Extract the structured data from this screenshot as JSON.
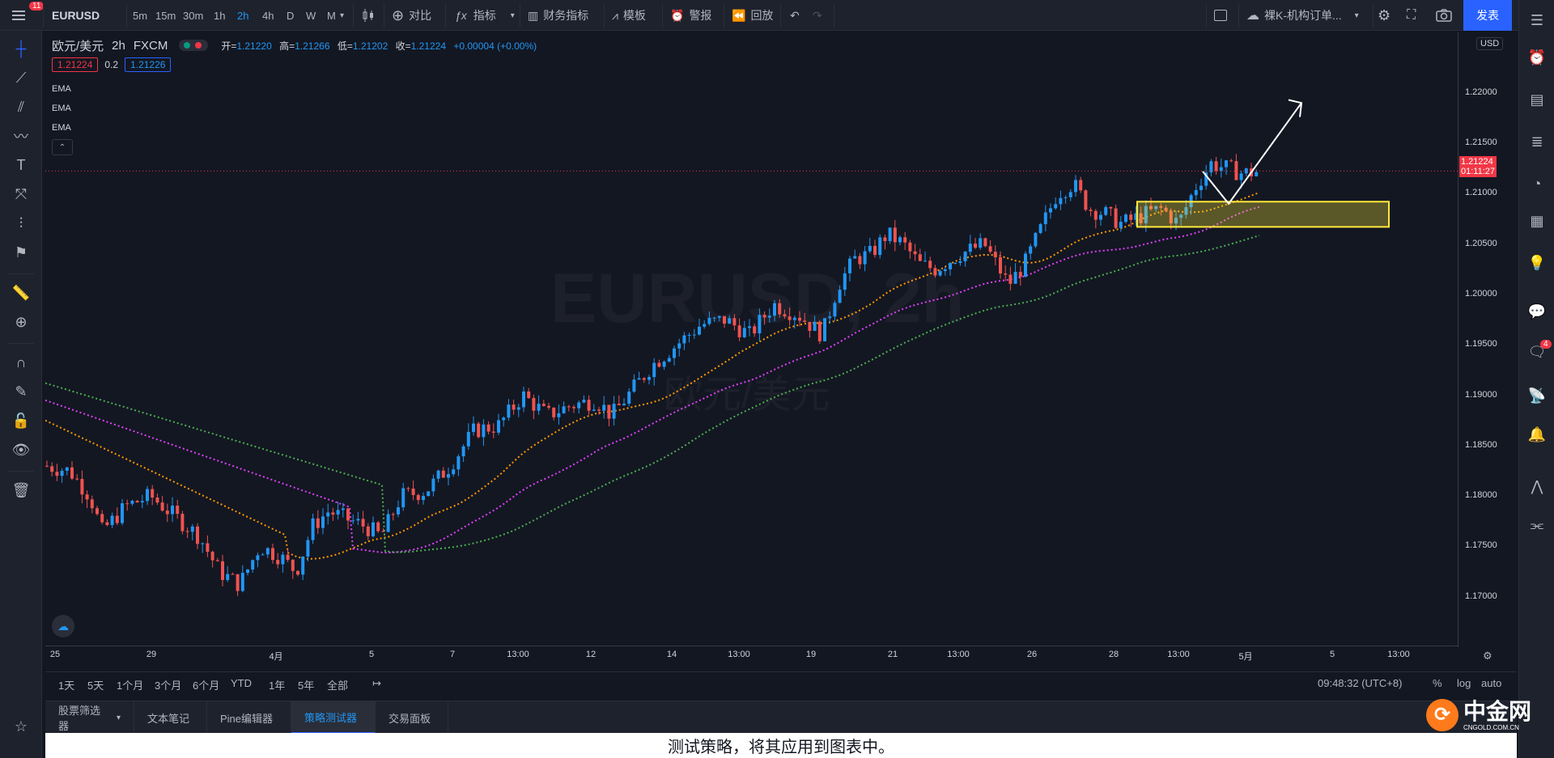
{
  "header": {
    "menu_badge": "11",
    "symbol": "EURUSD",
    "intervals": [
      "5m",
      "15m",
      "30m",
      "1h",
      "2h",
      "4h",
      "D",
      "W",
      "M"
    ],
    "active_interval": "2h",
    "compare": "对比",
    "indicators": "指标",
    "financials": "财务指标",
    "templates": "模板",
    "alert": "警报",
    "replay": "回放",
    "layout_name": "裸K-机构订单...",
    "publish": "发表"
  },
  "legend": {
    "title": "欧元/美元",
    "interval": "2h",
    "exchange": "FXCM",
    "open_label": "开=",
    "open": "1.21220",
    "high_label": "高=",
    "high": "1.21266",
    "low_label": "低=",
    "low": "1.21202",
    "close_label": "收=",
    "close": "1.21224",
    "change": "+0.00004 (+0.00%)",
    "bid": "1.21224",
    "spread": "0.2",
    "ask": "1.21226",
    "indicators": [
      "EMA",
      "EMA",
      "EMA"
    ]
  },
  "watermark": {
    "symbol": "EURUSD, 2h",
    "name": "欧元/美元"
  },
  "price_scale": {
    "currency": "USD",
    "labels": [
      "1.22000",
      "1.21500",
      "1.21000",
      "1.20500",
      "1.20000",
      "1.19500",
      "1.19000",
      "1.18500",
      "1.18000",
      "1.17500",
      "1.17000"
    ],
    "current_price": "1.21224",
    "countdown": "01:11:27"
  },
  "time_scale": {
    "labels": [
      "25",
      "29",
      "4月",
      "5",
      "7",
      "13:00",
      "12",
      "14",
      "13:00",
      "19",
      "21",
      "13:00",
      "26",
      "28",
      "13:00",
      "5月",
      "5",
      "13:00"
    ]
  },
  "range_bar": {
    "ranges": [
      "1天",
      "5天",
      "1个月",
      "3个月",
      "6个月",
      "YTD",
      "1年",
      "5年",
      "全部"
    ],
    "time": "09:48:32 (UTC+8)",
    "percent": "%",
    "log": "log",
    "auto": "auto"
  },
  "bottom_tabs": [
    "股票筛选器",
    "文本笔记",
    "Pine编辑器",
    "策略测试器",
    "交易面板"
  ],
  "active_tab": "策略测试器",
  "footer_message": "测试策略，将其应用到图表中。",
  "right_badge": "4",
  "logo_text": "中金网",
  "logo_sub": "CNGOLD.COM.CN",
  "colors": {
    "up": "#2196f3",
    "down": "#ef5350",
    "ema_fast": "#ff9800",
    "ema_mid": "#e040fb",
    "ema_slow": "#4caf50",
    "zone": "#ffeb3b",
    "accent": "#2962ff"
  },
  "chart_data": {
    "type": "candlestick",
    "symbol": "EURUSD",
    "interval": "2h",
    "ylim": [
      1.165,
      1.226
    ],
    "ema_series": [
      "EMA",
      "EMA",
      "EMA"
    ],
    "current_price": 1.21224
  }
}
